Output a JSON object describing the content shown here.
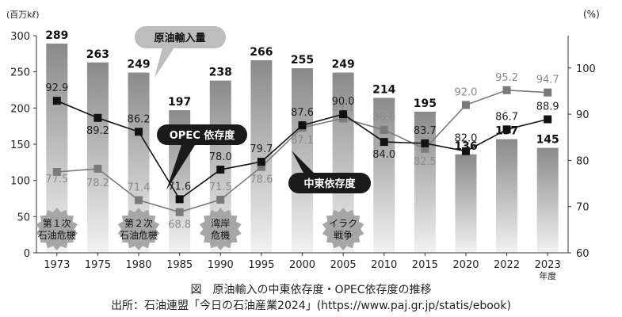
{
  "chart_data": {
    "type": "bar",
    "title": "",
    "left_unit": "(百万kℓ)",
    "right_unit": "(%)",
    "x_suffix": "年度",
    "categories": [
      "1973",
      "1975",
      "1980",
      "1985",
      "1990",
      "1995",
      "2000",
      "2005",
      "2010",
      "2015",
      "2020",
      "2022",
      "2023"
    ],
    "left_ylim": [
      0,
      300
    ],
    "left_ticks": [
      0,
      50,
      100,
      150,
      200,
      250,
      300
    ],
    "right_ylim": [
      60,
      107
    ],
    "right_ticks": [
      60,
      70,
      80,
      90,
      100
    ],
    "bars": {
      "name": "原油輸入量",
      "values": [
        289,
        263,
        249,
        197,
        238,
        266,
        255,
        249,
        214,
        195,
        136,
        157,
        145
      ]
    },
    "series": [
      {
        "name": "中東依存度",
        "marker": "square-gray",
        "values": [
          77.5,
          78.2,
          71.4,
          68.8,
          71.5,
          78.6,
          87.1,
          89.1,
          86.6,
          82.5,
          92.0,
          95.2,
          94.7
        ]
      },
      {
        "name": "OPEC 依存度",
        "marker": "square-black",
        "values": [
          92.9,
          89.2,
          86.2,
          71.6,
          78.0,
          79.7,
          87.6,
          90.0,
          84.0,
          83.7,
          82.0,
          86.7,
          88.9
        ]
      }
    ],
    "events": [
      {
        "label": "第１次\n石油危機",
        "category": "1973"
      },
      {
        "label": "第２次\n石油危機",
        "category": "1980"
      },
      {
        "label": "湾岸\n危機",
        "category": "1990"
      },
      {
        "label": "イラク\n戦争",
        "category": "2005"
      }
    ],
    "callouts": {
      "bars": "原油輸入量",
      "opec": "OPEC 依存度",
      "mideast": "中東依存度"
    },
    "colors": {
      "bar_light": "#d9d9d9",
      "bar_dark": "#8c8c8c",
      "opec_line": "#111111",
      "mideast_line": "#7a7a7a",
      "callout_dark": "#1a1a1a",
      "callout_gray": "#bdbdbd"
    }
  },
  "caption": {
    "line1": "図　原油輸入の中東依存度・OPEC依存度の推移",
    "line2": "出所：石油連盟「今日の石油産業2024」(https://www.paj.gr.jp/statis/ebook)"
  }
}
